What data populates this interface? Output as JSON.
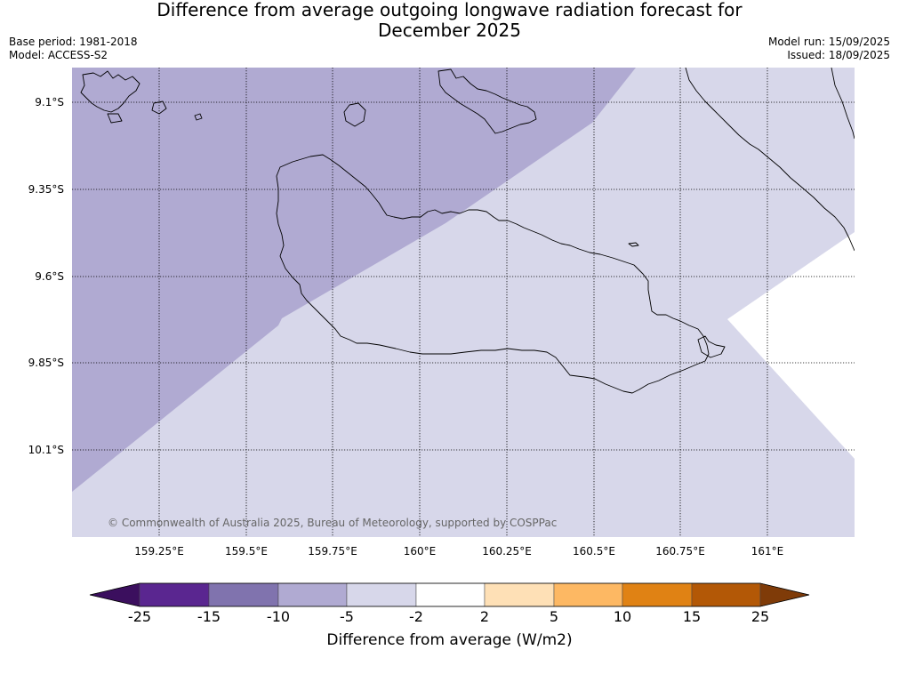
{
  "header": {
    "title_line1": "Difference from average outgoing longwave radiation forecast for",
    "title_line2": "December 2025",
    "base_period": "Base period: 1981-2018",
    "model": "Model: ACCESS-S2",
    "model_run": "Model run: 15/09/2025",
    "issued": "Issued: 18/09/2025"
  },
  "map": {
    "copyright": "© Commonwealth of Australia 2025, Bureau of Meteorology, supported by COSPPac",
    "lat_labels": [
      "9.1°S",
      "9.35°S",
      "9.6°S",
      "9.85°S",
      "10.1°S"
    ],
    "lon_labels": [
      "159.25°E",
      "159.5°E",
      "159.75°E",
      "160°E",
      "160.25°E",
      "160.5°E",
      "160.75°E",
      "161°E"
    ],
    "fill_colors": {
      "band_minus10_minus5": "#b0aad2",
      "band_minus5_minus2": "#d7d7ea",
      "band_minus2_2": "#ffffff",
      "coastline": "#000000"
    }
  },
  "colorbar": {
    "title": "Difference from average (W/m2)",
    "tick_labels": [
      "-25",
      "-15",
      "-10",
      "-5",
      "-2",
      "2",
      "5",
      "10",
      "15",
      "25"
    ],
    "colors": [
      "#3b0f5e",
      "#5a2690",
      "#8073ae",
      "#b0aad2",
      "#d7d7ea",
      "#ffffff",
      "#fee0b6",
      "#fdb863",
      "#e08214",
      "#b35806",
      "#7f3b08"
    ]
  }
}
